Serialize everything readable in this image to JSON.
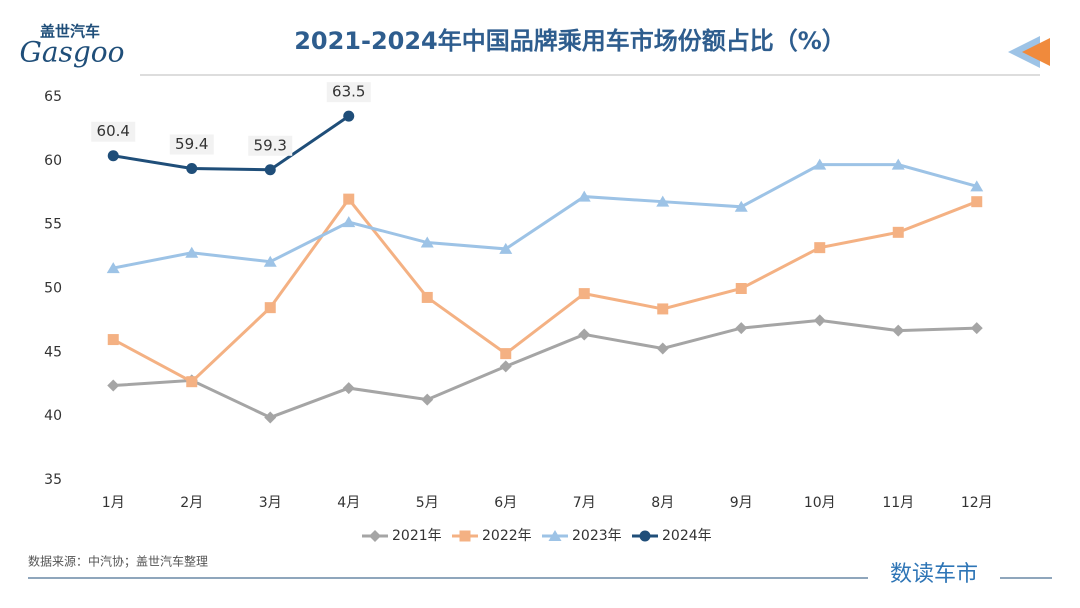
{
  "brand": {
    "cn": "盖世汽车",
    "en": "Gasgoo"
  },
  "chart_data": {
    "type": "line",
    "title": "2021-2024年中国品牌乘用车市场份额占比（%）",
    "categories": [
      "1月",
      "2月",
      "3月",
      "4月",
      "5月",
      "6月",
      "7月",
      "8月",
      "9月",
      "10月",
      "11月",
      "12月"
    ],
    "series": [
      {
        "name": "2021年",
        "color": "#a5a5a5",
        "marker": "diamond",
        "values": [
          42.4,
          42.8,
          39.9,
          42.2,
          41.3,
          43.9,
          46.4,
          45.3,
          46.9,
          47.5,
          46.7,
          46.9
        ]
      },
      {
        "name": "2022年",
        "color": "#f4b183",
        "marker": "square",
        "values": [
          46.0,
          42.7,
          48.5,
          57.0,
          49.3,
          44.9,
          49.6,
          48.4,
          50.0,
          53.2,
          54.4,
          56.8
        ]
      },
      {
        "name": "2023年",
        "color": "#9dc3e6",
        "marker": "triangle",
        "values": [
          51.6,
          52.8,
          52.1,
          55.2,
          53.6,
          53.1,
          57.2,
          56.8,
          56.4,
          59.7,
          59.7,
          58.0
        ]
      },
      {
        "name": "2024年",
        "color": "#1f4e79",
        "marker": "circle",
        "data_labels": true,
        "values": [
          60.4,
          59.4,
          59.3,
          63.5,
          null,
          null,
          null,
          null,
          null,
          null,
          null,
          null
        ]
      }
    ],
    "ylim": [
      35,
      65
    ],
    "yticks": [
      35,
      40,
      45,
      50,
      55,
      60,
      65
    ],
    "grid": false,
    "legend": "bottom"
  },
  "source": "数据来源：中汽协；盖世汽车整理",
  "footer": "数读车市"
}
